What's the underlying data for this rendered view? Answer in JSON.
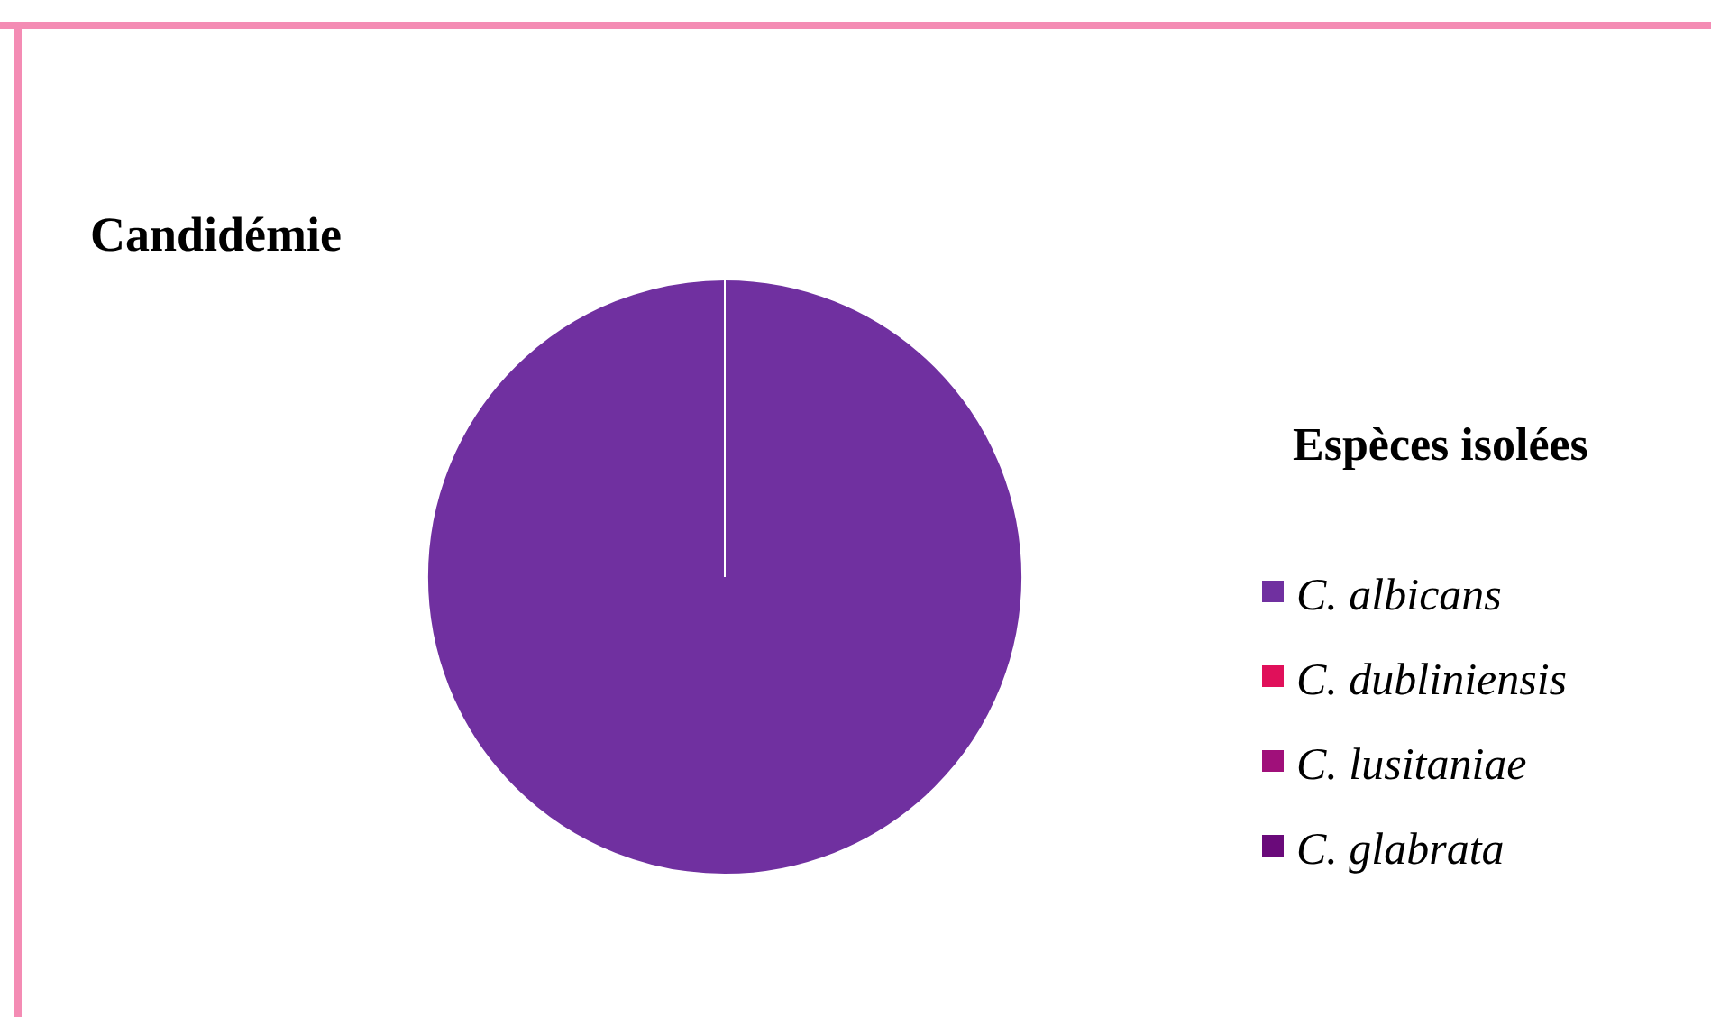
{
  "chart_data": {
    "type": "pie",
    "title": "Candidémie",
    "legend_title": "Espèces isolées",
    "legend": "right",
    "categories": [
      "C. albicans",
      "C. dubliniensis",
      "C. lusitaniae",
      "C. glabrata"
    ],
    "values": [
      100,
      0,
      0,
      0
    ],
    "colors": [
      "#7030a0",
      "#e0105a",
      "#a0107a",
      "#6a0a7a"
    ]
  }
}
